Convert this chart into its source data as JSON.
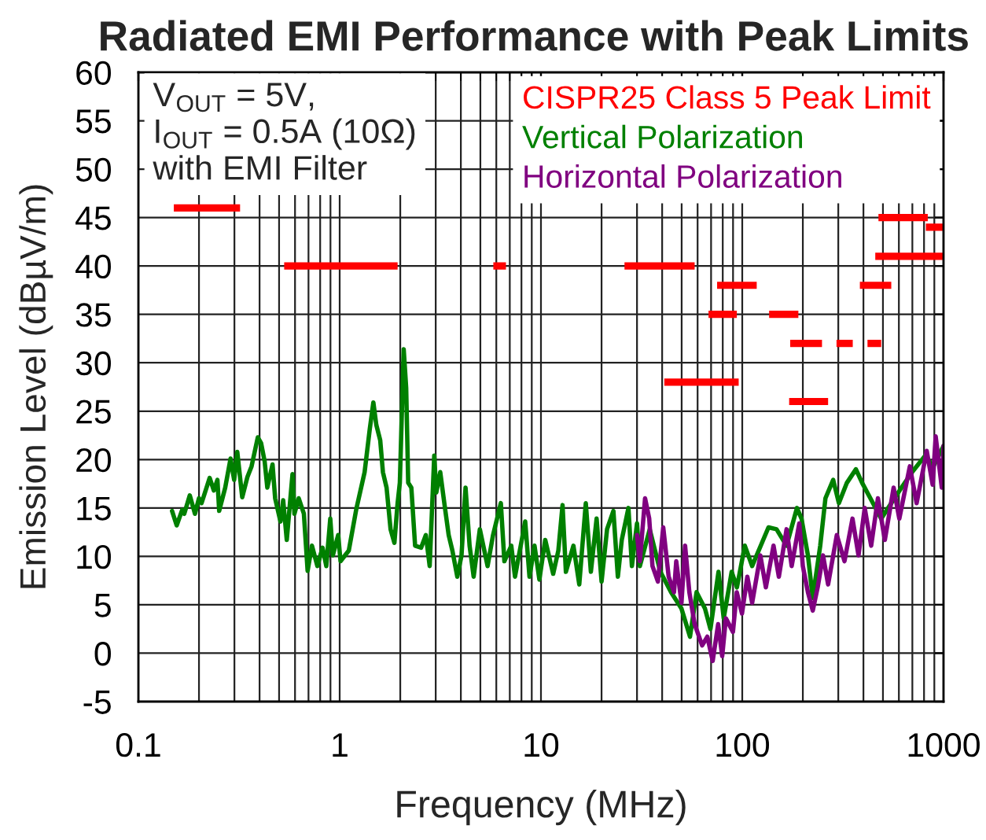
{
  "chart_data": {
    "type": "line",
    "title": "Radiated EMI Performance with Peak Limits",
    "xlabel": "Frequency (MHz)",
    "ylabel": "Emission Level (dBµV/m)",
    "log": "x",
    "xlim": [
      0.1,
      1000
    ],
    "xticks": [
      0.1,
      1,
      10,
      100,
      1000
    ],
    "ylim": [
      -5,
      60
    ],
    "yticks": [
      -5,
      0,
      5,
      10,
      15,
      20,
      25,
      30,
      35,
      40,
      45,
      50,
      55,
      60
    ],
    "grid": true,
    "legend": "top right",
    "annotations": [
      "V$_{OUT}$ = 5V,",
      "I$_{OUT}$ = 0.5A (10Ω)",
      "with EMI Filter"
    ],
    "series": [
      {
        "name": "CISPR25 Class 5 Peak Limit",
        "color": "#ff0000",
        "x": [
          0.15,
          0.32,
          null,
          0.53,
          1.94,
          null,
          5.8,
          6.7,
          null,
          26,
          58,
          null,
          41,
          96,
          null,
          68,
          94,
          null,
          75,
          118,
          null,
          136,
          190,
          null,
          173,
          249,
          null,
          171,
          267,
          null,
          294,
          354,
          null,
          419,
          490,
          null,
          384,
          550,
          null,
          475,
          835,
          null,
          458,
          1000,
          null,
          817,
          1000
        ],
        "values": [
          46,
          46,
          null,
          40,
          40,
          null,
          40,
          40,
          null,
          40,
          40,
          null,
          28,
          28,
          null,
          35,
          35,
          null,
          38,
          38,
          null,
          35,
          35,
          null,
          32,
          32,
          null,
          26,
          26,
          null,
          32,
          32,
          null,
          32,
          32,
          null,
          38,
          38,
          null,
          45,
          45,
          null,
          41,
          41,
          null,
          44,
          44
        ]
      },
      {
        "name": "Vertical Polarization",
        "color": "#008000",
        "x": [
          0.147,
          0.155,
          0.165,
          0.169,
          0.18,
          0.191,
          0.2,
          0.206,
          0.226,
          0.237,
          0.247,
          0.252,
          0.27,
          0.287,
          0.299,
          0.31,
          0.328,
          0.348,
          0.365,
          0.392,
          0.407,
          0.424,
          0.437,
          0.464,
          0.478,
          0.508,
          0.524,
          0.546,
          0.583,
          0.596,
          0.626,
          0.664,
          0.693,
          0.728,
          0.775,
          0.822,
          0.858,
          0.898,
          0.925,
          0.983,
          1.01,
          1.11,
          1.21,
          1.33,
          1.41,
          1.47,
          1.52,
          1.59,
          1.64,
          1.71,
          1.79,
          1.87,
          1.94,
          1.99,
          2.08,
          2.14,
          2.19,
          2.27,
          2.37,
          2.54,
          2.68,
          2.8,
          2.95,
          3.02,
          3.16,
          3.31,
          3.48,
          3.63,
          3.84,
          4.03,
          4.22,
          4.42,
          4.63,
          4.97,
          5.43,
          5.78,
          6.32,
          6.58,
          7.12,
          7.43,
          8.35,
          8.77,
          9.29,
          9.82,
          10.5,
          11.5,
          12.2,
          12.8,
          13.3,
          14.5,
          15.5,
          16.7,
          17.7,
          18.9,
          20.0,
          21.3,
          22.9,
          24.1,
          25.2,
          27.2,
          28.3,
          30.0,
          31.0,
          34.7,
          39.2,
          44.3,
          49.9,
          55.0,
          59.3,
          65.3,
          69.5,
          76.2,
          80.9,
          88.6,
          94.1,
          103,
          112,
          135,
          148,
          166,
          187,
          197,
          212,
          224,
          244,
          259,
          283,
          302,
          331,
          367,
          394,
          433,
          490,
          618,
          698,
          810,
          890,
          1000
        ],
        "values": [
          14.7,
          13.2,
          14.8,
          14.4,
          16.3,
          14.4,
          16.0,
          15.5,
          18.1,
          16.8,
          17.9,
          14.7,
          17.1,
          20.1,
          17.9,
          20.8,
          16.1,
          18.2,
          19.3,
          22.3,
          21.7,
          19.8,
          17.1,
          19.5,
          16.0,
          13.6,
          15.8,
          11.7,
          18.5,
          14.4,
          16.0,
          14.4,
          8.5,
          11.1,
          9.0,
          10.9,
          9.0,
          13.9,
          10.1,
          12.2,
          9.5,
          10.6,
          14.9,
          18.7,
          23.1,
          25.9,
          23.6,
          22.0,
          18.7,
          17.1,
          12.8,
          11.4,
          15.5,
          17.6,
          31.4,
          27.4,
          17.6,
          17.1,
          11.1,
          10.9,
          12.2,
          9.0,
          20.4,
          16.6,
          18.7,
          15.5,
          12.2,
          10.6,
          7.9,
          10.1,
          17.1,
          11.1,
          7.9,
          12.8,
          9.0,
          12.2,
          15.5,
          9.5,
          11.1,
          7.9,
          13.6,
          7.9,
          11.1,
          7.6,
          11.7,
          8.2,
          10.6,
          15.3,
          8.4,
          11.1,
          7.1,
          15.5,
          8.4,
          13.9,
          7.4,
          12.8,
          14.7,
          7.9,
          11.7,
          15.0,
          9.0,
          13.4,
          9.0,
          12.8,
          8.4,
          6.3,
          4.6,
          1.7,
          6.3,
          4.6,
          2.5,
          8.4,
          3.6,
          8.4,
          6.8,
          11.1,
          9.0,
          13.0,
          12.8,
          11.1,
          15.0,
          13.9,
          10.1,
          5.7,
          11.1,
          16.0,
          17.9,
          15.5,
          17.6,
          19.0,
          17.6,
          16.0,
          13.9,
          17.1,
          18.7,
          20.4,
          19.3,
          21.4
        ]
      },
      {
        "name": "Horizontal Polarization",
        "color": "#800080",
        "x": [
          30.0,
          31.0,
          32.9,
          34.5,
          35.8,
          38.1,
          40.5,
          43.1,
          45.8,
          47.0,
          49.9,
          52.0,
          54.6,
          58.0,
          63.2,
          67.1,
          71.3,
          75.9,
          79.5,
          82.9,
          89.9,
          93.9,
          99.7,
          106,
          112,
          123,
          131,
          143,
          152,
          166,
          176,
          192,
          200,
          212,
          224,
          237,
          252,
          267,
          295,
          322,
          353,
          378,
          406,
          437,
          472,
          511,
          565,
          603,
          680,
          735,
          825,
          883,
          914,
          980,
          1000
        ],
        "values": [
          12.2,
          9.5,
          16.0,
          13.9,
          9.0,
          7.4,
          13.0,
          7.9,
          6.3,
          9.5,
          5.2,
          11.1,
          6.3,
          3.0,
          0.8,
          1.7,
          -0.8,
          3.0,
          -0.3,
          3.6,
          2.2,
          6.3,
          4.1,
          7.9,
          5.2,
          10.1,
          6.8,
          11.1,
          7.9,
          12.8,
          9.0,
          13.4,
          9.0,
          6.3,
          4.4,
          6.8,
          10.1,
          7.1,
          12.2,
          9.5,
          13.9,
          10.1,
          15.0,
          11.1,
          16.0,
          11.7,
          17.1,
          13.9,
          19.3,
          15.5,
          20.9,
          17.4,
          22.4,
          17.1,
          21.4
        ]
      }
    ]
  }
}
